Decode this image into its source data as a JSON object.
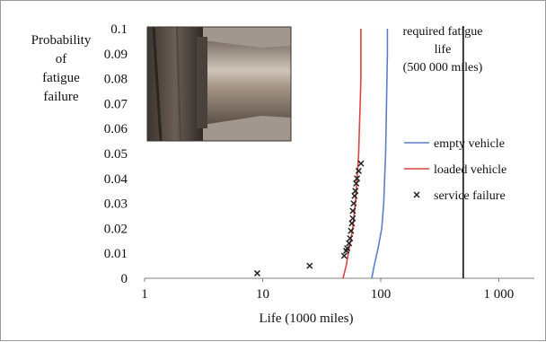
{
  "chart_data": {
    "type": "line",
    "title": "",
    "xlabel": "Life (1000 miles)",
    "ylabel": "Probability of fatigue failure",
    "ylabel_lines": [
      "Probability",
      "of",
      "fatigue",
      "failure"
    ],
    "xscale": "log",
    "xlim": [
      1,
      2000
    ],
    "ylim": [
      0,
      0.1
    ],
    "x_ticks": [
      1,
      10,
      100,
      1000
    ],
    "x_tick_labels": [
      "1",
      "10",
      "100",
      "1 000"
    ],
    "y_ticks": [
      0,
      0.01,
      0.02,
      0.03,
      0.04,
      0.05,
      0.06,
      0.07,
      0.08,
      0.09,
      0.1
    ],
    "y_tick_labels": [
      "0",
      "0.01",
      "0.02",
      "0.03",
      "0.04",
      "0.05",
      "0.06",
      "0.07",
      "0.08",
      "0.09",
      "0.1"
    ],
    "grid": false,
    "legend_position": "right",
    "series": [
      {
        "name": "empty vehicle",
        "kind": "line",
        "color": "#5b7fc7",
        "points": [
          [
            84,
            0
          ],
          [
            88,
            0.005
          ],
          [
            95,
            0.012
          ],
          [
            102,
            0.02
          ],
          [
            106,
            0.03
          ],
          [
            108,
            0.04
          ],
          [
            110,
            0.05
          ],
          [
            111,
            0.06
          ],
          [
            112,
            0.07
          ],
          [
            113,
            0.08
          ],
          [
            114,
            0.09
          ],
          [
            114,
            0.1
          ]
        ]
      },
      {
        "name": "loaded vehicle",
        "kind": "line",
        "color": "#d9453f",
        "points": [
          [
            48,
            0
          ],
          [
            51,
            0.005
          ],
          [
            54,
            0.012
          ],
          [
            58,
            0.02
          ],
          [
            61,
            0.03
          ],
          [
            63,
            0.04
          ],
          [
            65,
            0.05
          ],
          [
            66,
            0.06
          ],
          [
            67,
            0.07
          ],
          [
            68,
            0.08
          ],
          [
            68,
            0.09
          ],
          [
            68,
            0.1
          ]
        ]
      },
      {
        "name": "service failure",
        "kind": "scatter",
        "marker": "x",
        "color": "#222222",
        "points": [
          [
            9,
            0.002
          ],
          [
            25,
            0.005
          ],
          [
            49,
            0.009
          ],
          [
            51,
            0.011
          ],
          [
            52,
            0.012
          ],
          [
            54,
            0.014
          ],
          [
            55,
            0.016
          ],
          [
            56,
            0.019
          ],
          [
            57,
            0.022
          ],
          [
            58,
            0.024
          ],
          [
            58,
            0.027
          ],
          [
            59,
            0.03
          ],
          [
            60,
            0.033
          ],
          [
            61,
            0.035
          ],
          [
            62,
            0.038
          ],
          [
            63,
            0.04
          ],
          [
            65,
            0.043
          ],
          [
            68,
            0.046
          ]
        ]
      }
    ],
    "reference_line": {
      "x": 500,
      "color": "#111111",
      "label_lines": [
        "required fatigue",
        "life",
        "(500 000 miles)"
      ]
    },
    "inset_photo": {
      "icon": "axle-spindle-photo",
      "colors": [
        "#5c5149",
        "#a39588",
        "#d2c8bc",
        "#3a332e"
      ]
    }
  }
}
